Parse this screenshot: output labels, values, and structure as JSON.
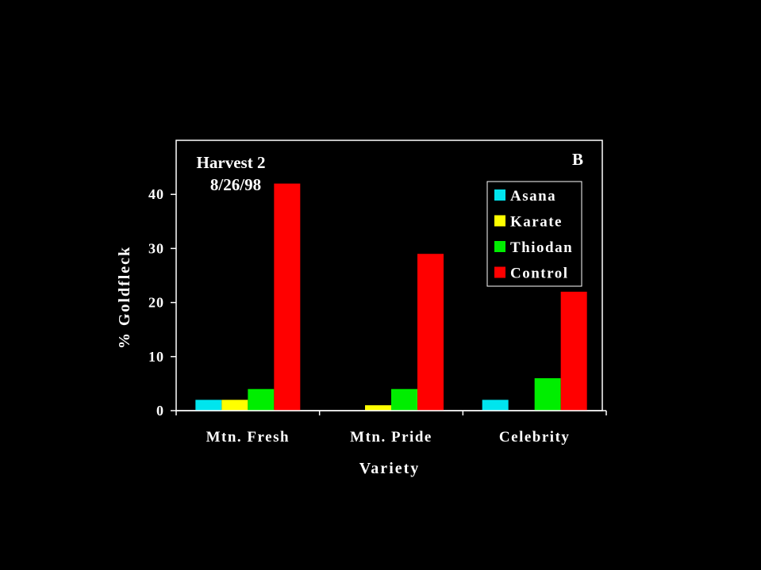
{
  "chart_data": {
    "type": "bar",
    "title": "",
    "xlabel": "Variety",
    "ylabel": "% Goldfleck",
    "categories": [
      "Mtn. Fresh",
      "Mtn. Pride",
      "Celebrity"
    ],
    "series": [
      {
        "name": "Asana",
        "color": "#00e5ee",
        "values": [
          2,
          0,
          2
        ]
      },
      {
        "name": "Karate",
        "color": "#ffff00",
        "values": [
          2,
          1,
          0
        ]
      },
      {
        "name": "Thiodan",
        "color": "#00ee00",
        "values": [
          4,
          4,
          6
        ]
      },
      {
        "name": "Control",
        "color": "#ff0000",
        "values": [
          42,
          29,
          22
        ]
      }
    ],
    "ylim": [
      0,
      50
    ],
    "yticks": [
      0,
      10,
      20,
      30,
      40
    ],
    "ytick_labels": [
      "0",
      "10",
      "20",
      "30",
      "40"
    ],
    "grid": false,
    "legend_position": "top-right",
    "annotations": {
      "harvest_line1": "Harvest 2",
      "harvest_line2": "8/26/98",
      "panel_label": "B"
    }
  }
}
